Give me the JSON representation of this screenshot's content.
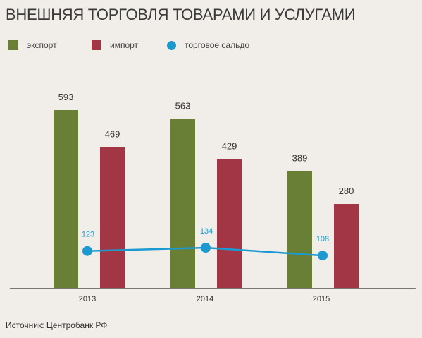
{
  "title": "ВНЕШНЯЯ ТОРГОВЛЯ ТОВАРАМИ И УСЛУГАМИ",
  "source": "Источник: Центробанк РФ",
  "colors": {
    "export": "#6a7f36",
    "import": "#a33644",
    "balance": "#1a9ad1",
    "axis": "#777777"
  },
  "legend": [
    {
      "key": "export",
      "label": "экспорт"
    },
    {
      "key": "import",
      "label": "импорт"
    },
    {
      "key": "balance",
      "label": "торговое сальдо"
    }
  ],
  "chart_data": {
    "type": "bar",
    "title": "ВНЕШНЯЯ ТОРГОВЛЯ ТОВАРАМИ И УСЛУГАМИ",
    "categories": [
      "2013",
      "2014",
      "2015"
    ],
    "series": [
      {
        "name": "экспорт",
        "type": "bar",
        "values": [
          593,
          563,
          389
        ]
      },
      {
        "name": "импорт",
        "type": "bar",
        "values": [
          469,
          429,
          280
        ]
      },
      {
        "name": "торговое сальдо",
        "type": "line",
        "values": [
          123,
          134,
          108
        ]
      }
    ],
    "ylim": [
      0,
      593
    ],
    "grid": false,
    "legend_position": "top-left"
  }
}
